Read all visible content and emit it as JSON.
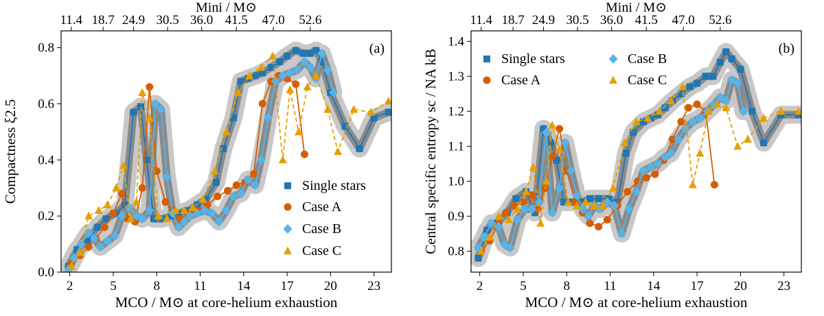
{
  "chart_data": [
    {
      "type": "line",
      "panel_label": "(a)",
      "ylabel": "Compactness ξ2.5",
      "xlabel": "MCO / M⊙ at core-helium exhaustion",
      "top_xlabel": "Mini / M⊙",
      "xlim": [
        1.4,
        24.2
      ],
      "ylim": [
        0.0,
        0.86
      ],
      "xticks": [
        2,
        5,
        8,
        11,
        14,
        17,
        20,
        23
      ],
      "yticks": [
        0.0,
        0.2,
        0.4,
        0.6,
        0.8
      ],
      "ytick_labels": [
        "0.0",
        "0.2",
        "0.4",
        "0.6",
        "0.8"
      ],
      "top_ticks": [
        {
          "x": 2.1,
          "label": "11.4"
        },
        {
          "x": 4.3,
          "label": "18.7"
        },
        {
          "x": 6.4,
          "label": "24.9"
        },
        {
          "x": 8.75,
          "label": "30.5"
        },
        {
          "x": 11.1,
          "label": "36.0"
        },
        {
          "x": 13.5,
          "label": "41.5"
        },
        {
          "x": 16.05,
          "label": "47.0"
        },
        {
          "x": 18.6,
          "label": "52.6"
        }
      ],
      "legend": {
        "position": "bottom-right",
        "entries": [
          "Single stars",
          "Case A",
          "Case B",
          "Case C"
        ]
      },
      "series": [
        {
          "name": "Single stars",
          "color": "#1f77b4",
          "marker": "square",
          "dash": false,
          "band": true,
          "x": [
            1.9,
            2.5,
            3.2,
            3.9,
            4.5,
            5.2,
            5.8,
            6.4,
            6.9,
            7.3,
            7.8,
            8.4,
            9.0,
            9.5,
            10.2,
            10.8,
            11.4,
            12.1,
            12.6,
            13.3,
            13.8,
            14.3,
            14.8,
            15.3,
            15.9,
            16.5,
            17.0,
            17.6,
            18.1,
            18.6,
            19.0,
            19.4,
            20.0,
            21.0,
            22.0,
            23.0,
            24.0
          ],
          "y": [
            0.02,
            0.08,
            0.11,
            0.16,
            0.19,
            0.21,
            0.24,
            0.57,
            0.59,
            0.4,
            0.19,
            0.19,
            0.2,
            0.21,
            0.22,
            0.24,
            0.26,
            0.32,
            0.44,
            0.55,
            0.68,
            0.69,
            0.7,
            0.71,
            0.73,
            0.75,
            0.77,
            0.79,
            0.78,
            0.78,
            0.79,
            0.75,
            0.64,
            0.52,
            0.44,
            0.55,
            0.57
          ]
        },
        {
          "name": "Case A",
          "color": "#d55e00",
          "marker": "circle",
          "dash": false,
          "band": false,
          "x": [
            2.1,
            2.7,
            3.3,
            3.8,
            4.4,
            5.0,
            5.6,
            6.0,
            6.5,
            7.0,
            7.5,
            8.0,
            8.6,
            9.1,
            9.6,
            10.2,
            10.8,
            11.5,
            12.2,
            12.9,
            13.5,
            14.1,
            14.7,
            15.3,
            15.9,
            16.4,
            17.0,
            17.6,
            18.2
          ],
          "y": [
            0.03,
            0.06,
            0.09,
            0.12,
            0.16,
            0.21,
            0.28,
            0.19,
            0.18,
            0.3,
            0.66,
            0.36,
            0.25,
            0.22,
            0.19,
            0.21,
            0.22,
            0.24,
            0.27,
            0.29,
            0.31,
            0.32,
            0.35,
            0.6,
            0.68,
            0.7,
            0.69,
            0.67,
            0.42
          ]
        },
        {
          "name": "Case B",
          "color": "#56b4e9",
          "marker": "diamond",
          "dash": false,
          "band": true,
          "x": [
            1.9,
            2.3,
            2.8,
            3.3,
            3.7,
            4.1,
            4.6,
            5.1,
            5.6,
            6.1,
            6.6,
            7.0,
            7.5,
            7.9,
            8.3,
            8.7,
            9.1,
            9.5,
            9.9,
            10.3,
            10.8,
            11.3,
            11.8,
            12.3,
            12.8,
            13.3,
            13.8,
            14.3,
            14.8,
            15.2,
            15.7,
            16.2,
            16.7,
            17.2,
            17.7,
            18.2,
            18.6,
            19.0,
            19.4,
            19.8,
            20.2
          ],
          "y": [
            0.01,
            0.05,
            0.1,
            0.14,
            0.12,
            0.09,
            0.11,
            0.13,
            0.2,
            0.23,
            0.2,
            0.19,
            0.22,
            0.6,
            0.58,
            0.34,
            0.21,
            0.16,
            0.18,
            0.2,
            0.21,
            0.22,
            0.21,
            0.18,
            0.22,
            0.27,
            0.28,
            0.33,
            0.31,
            0.4,
            0.55,
            0.68,
            0.7,
            0.71,
            0.72,
            0.75,
            0.73,
            0.69,
            0.78,
            0.72,
            0.64
          ]
        },
        {
          "name": "Case C",
          "color": "#e69f00",
          "marker": "triangle",
          "dash": true,
          "band": false,
          "x": [
            2.1,
            2.7,
            3.3,
            4.0,
            4.6,
            5.2,
            5.7,
            6.2,
            6.6,
            7.0,
            7.5,
            8.1,
            8.7,
            9.3,
            9.9,
            10.5,
            11.2,
            12.0,
            12.8,
            13.6,
            14.4,
            15.2,
            16.0,
            16.7,
            17.2,
            17.8,
            18.4,
            19.0,
            19.8,
            20.5,
            21.6,
            22.8,
            24.0
          ],
          "y": [
            0.02,
            0.07,
            0.2,
            0.22,
            0.24,
            0.3,
            0.38,
            0.19,
            0.25,
            0.64,
            0.55,
            0.2,
            0.19,
            0.22,
            0.22,
            0.23,
            0.26,
            0.36,
            0.5,
            0.64,
            0.7,
            0.73,
            0.77,
            0.4,
            0.65,
            0.5,
            0.66,
            0.7,
            0.58,
            0.43,
            0.58,
            0.57,
            0.61
          ]
        }
      ]
    },
    {
      "type": "line",
      "panel_label": "(b)",
      "ylabel": "Central specific entropy sc / NA kB",
      "xlabel": "MCO / M⊙ at core-helium exhaustion",
      "top_xlabel": "Mini / M⊙",
      "xlim": [
        1.4,
        24.2
      ],
      "ylim": [
        0.74,
        1.43
      ],
      "xticks": [
        2,
        5,
        8,
        11,
        14,
        17,
        20,
        23
      ],
      "yticks": [
        0.8,
        0.9,
        1.0,
        1.1,
        1.2,
        1.3,
        1.4
      ],
      "ytick_labels": [
        "0.8",
        "0.9",
        "1.0",
        "1.1",
        "1.2",
        "1.3",
        "1.4"
      ],
      "top_ticks": [
        {
          "x": 2.1,
          "label": "11.4"
        },
        {
          "x": 4.3,
          "label": "18.7"
        },
        {
          "x": 6.4,
          "label": "24.9"
        },
        {
          "x": 8.75,
          "label": "30.5"
        },
        {
          "x": 11.1,
          "label": "36.0"
        },
        {
          "x": 13.5,
          "label": "41.5"
        },
        {
          "x": 16.05,
          "label": "47.0"
        },
        {
          "x": 18.6,
          "label": "52.6"
        }
      ],
      "legend": {
        "position": "top-left",
        "entries": [
          "Single stars",
          "Case A",
          "Case B",
          "Case C"
        ]
      },
      "series": [
        {
          "name": "Single stars",
          "color": "#1f77b4",
          "marker": "square",
          "dash": false,
          "band": true,
          "x": [
            1.9,
            2.5,
            3.2,
            3.9,
            4.5,
            5.2,
            5.8,
            6.4,
            6.9,
            7.3,
            7.8,
            8.4,
            9.0,
            9.6,
            10.2,
            10.9,
            11.5,
            12.1,
            12.6,
            13.3,
            13.8,
            14.3,
            14.8,
            15.3,
            15.9,
            16.5,
            17.0,
            17.6,
            18.1,
            18.6,
            19.0,
            19.4,
            20.0,
            20.8,
            21.6,
            22.8,
            24.0
          ],
          "y": [
            0.78,
            0.86,
            0.88,
            0.91,
            0.95,
            0.97,
            0.91,
            1.15,
            1.11,
            1.06,
            0.94,
            0.94,
            0.94,
            0.95,
            0.95,
            0.95,
            0.94,
            1.08,
            1.14,
            1.17,
            1.18,
            1.19,
            1.21,
            1.23,
            1.25,
            1.27,
            1.28,
            1.3,
            1.3,
            1.34,
            1.37,
            1.35,
            1.32,
            1.2,
            1.11,
            1.19,
            1.19
          ]
        },
        {
          "name": "Case A",
          "color": "#d55e00",
          "marker": "circle",
          "dash": false,
          "band": false,
          "x": [
            2.1,
            2.7,
            3.3,
            3.8,
            4.4,
            5.0,
            5.6,
            6.0,
            6.5,
            7.0,
            7.5,
            8.0,
            8.6,
            9.1,
            9.6,
            10.2,
            10.8,
            11.5,
            12.2,
            12.9,
            13.5,
            14.1,
            14.7,
            15.3,
            15.9,
            16.4,
            17.0,
            17.6,
            18.2
          ],
          "y": [
            0.8,
            0.83,
            0.88,
            0.91,
            0.93,
            0.94,
            0.96,
            0.92,
            0.98,
            1.07,
            1.15,
            1.03,
            0.94,
            0.91,
            0.88,
            0.87,
            0.89,
            0.93,
            0.97,
            1.0,
            1.01,
            1.02,
            1.06,
            1.12,
            1.17,
            1.21,
            1.22,
            1.2,
            0.99
          ]
        },
        {
          "name": "Case B",
          "color": "#56b4e9",
          "marker": "diamond",
          "dash": false,
          "band": true,
          "x": [
            1.9,
            2.3,
            2.8,
            3.3,
            3.7,
            4.1,
            4.6,
            5.1,
            5.6,
            6.1,
            6.6,
            7.0,
            7.5,
            7.9,
            8.3,
            8.7,
            9.1,
            9.5,
            9.9,
            10.3,
            10.8,
            11.3,
            11.8,
            12.3,
            12.8,
            13.3,
            13.8,
            14.3,
            14.8,
            15.2,
            15.7,
            16.2,
            16.7,
            17.2,
            17.7,
            18.2,
            18.6,
            19.0,
            19.4,
            19.8,
            20.2
          ],
          "y": [
            0.81,
            0.84,
            0.88,
            0.87,
            0.82,
            0.81,
            0.89,
            0.92,
            0.92,
            0.94,
            1.14,
            0.91,
            0.98,
            1.11,
            1.03,
            0.96,
            0.92,
            0.9,
            0.93,
            0.92,
            0.94,
            0.93,
            0.85,
            0.92,
            0.97,
            1.03,
            1.04,
            1.05,
            1.07,
            1.08,
            1.12,
            1.15,
            1.17,
            1.18,
            1.2,
            1.22,
            1.24,
            1.23,
            1.29,
            1.28,
            1.2
          ]
        },
        {
          "name": "Case C",
          "color": "#e69f00",
          "marker": "triangle",
          "dash": true,
          "band": false,
          "x": [
            2.1,
            2.7,
            3.3,
            4.0,
            4.6,
            5.2,
            5.7,
            6.2,
            6.6,
            7.0,
            7.5,
            8.1,
            8.7,
            9.3,
            9.9,
            10.5,
            11.2,
            12.0,
            12.8,
            13.6,
            14.4,
            15.2,
            16.0,
            16.7,
            17.2,
            17.8,
            18.4,
            19.0,
            19.8,
            20.5,
            21.6,
            22.8,
            24.0
          ],
          "y": [
            0.8,
            0.84,
            0.9,
            0.89,
            0.92,
            0.97,
            1.04,
            0.88,
            1.0,
            1.16,
            1.09,
            0.94,
            0.93,
            0.94,
            0.93,
            0.93,
            0.98,
            1.11,
            1.17,
            1.18,
            1.2,
            1.23,
            1.27,
            0.99,
            1.08,
            1.2,
            1.22,
            1.21,
            1.1,
            1.12,
            1.18,
            1.2,
            1.2
          ]
        }
      ]
    }
  ]
}
